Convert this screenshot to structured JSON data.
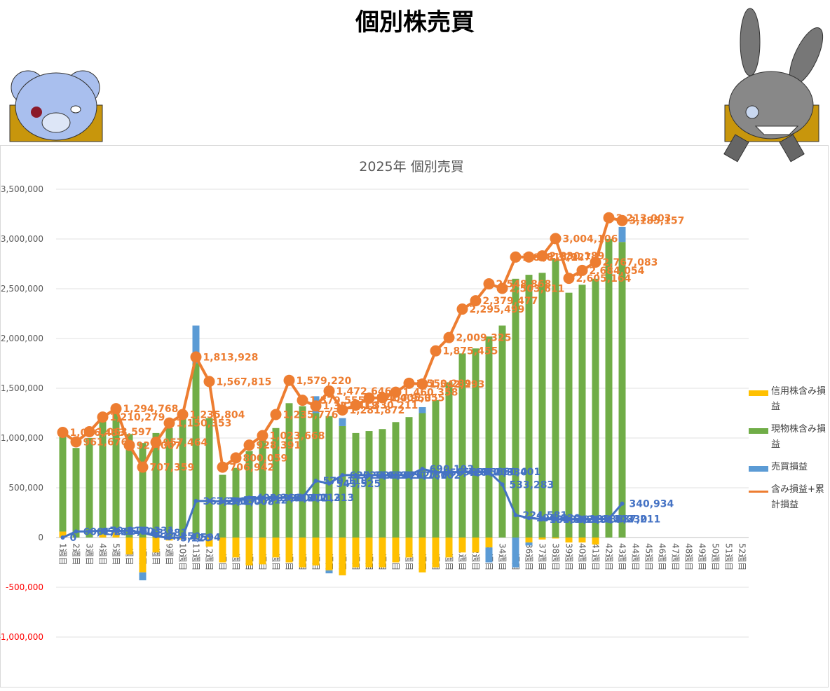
{
  "header": {
    "title": "個別株売買"
  },
  "chart_data": {
    "type": "combo",
    "title": "2025年 個別売買",
    "categories": [
      "1週目",
      "2週目",
      "3週目",
      "4週目",
      "5週目",
      "6週目",
      "7週目",
      "8週目",
      "9週目",
      "10週目",
      "11週目",
      "12週目",
      "13週目",
      "14週目",
      "15週目",
      "16週目",
      "17週目",
      "18週目",
      "19週目",
      "20週目",
      "21週目",
      "22週目",
      "23週目",
      "24週目",
      "25週目",
      "26週目",
      "27週目",
      "28週目",
      "29週目",
      "30週目",
      "31週目",
      "32週目",
      "33週目",
      "34週目",
      "35週目",
      "36週目",
      "37週目",
      "38週目",
      "39週目",
      "40週目",
      "41週目",
      "42週目",
      "43週目",
      "44週目",
      "45週目",
      "46週目",
      "47週目",
      "48週目",
      "49週目",
      "50週目",
      "51週目",
      "52週目"
    ],
    "ylim": [
      -1000000,
      3500000
    ],
    "yticks": [
      {
        "value": -1000000,
        "label": "-1,000,000"
      },
      {
        "value": -500000,
        "label": "-500,000"
      },
      0,
      {
        "value": 500000,
        "label": "500,000"
      },
      {
        "value": 1000000,
        "label": "1,000,000"
      },
      {
        "value": 1500000,
        "label": "1,500,000"
      },
      {
        "value": 2000000,
        "label": "2,000,000"
      },
      {
        "value": 2500000,
        "label": "2,500,000"
      },
      {
        "value": 3000000,
        "label": "3,000,000"
      },
      {
        "value": 3500000,
        "label": "3,500,000"
      }
    ],
    "grid": true,
    "legend": "right",
    "series": [
      {
        "name": "信用株含み損益",
        "type": "bar",
        "color": "#ffc000",
        "values": [
          60000,
          0,
          0,
          30000,
          50000,
          -170000,
          -350000,
          -150000,
          -30000,
          -20000,
          -20000,
          -90000,
          -250000,
          -200000,
          -280000,
          -270000,
          -200000,
          -250000,
          -300000,
          -280000,
          -330000,
          -380000,
          -300000,
          -300000,
          -300000,
          -250000,
          -200000,
          -350000,
          -300000,
          -200000,
          -150000,
          -150000,
          -100000,
          0,
          0,
          -50000,
          -20000,
          -10000,
          -50000,
          -50000,
          -70000,
          0,
          0,
          null,
          null,
          null,
          null,
          null,
          null,
          null,
          null,
          null
        ]
      },
      {
        "name": "現物株含み損益",
        "type": "bar",
        "color": "#70ad47",
        "values": [
          965000,
          900000,
          1000000,
          1140000,
          1230000,
          1040000,
          950000,
          1050000,
          1100000,
          1250000,
          1750000,
          1200000,
          630000,
          700000,
          870000,
          1000000,
          1100000,
          1350000,
          1320000,
          1250000,
          1220000,
          1120000,
          1050000,
          1070000,
          1090000,
          1160000,
          1210000,
          1250000,
          1380000,
          1560000,
          1850000,
          1900000,
          2020000,
          2130000,
          2600000,
          2640000,
          2660000,
          2800000,
          2460000,
          2540000,
          2600000,
          3000000,
          2970000,
          null,
          null,
          null,
          null,
          null,
          null,
          null,
          null,
          null
        ]
      },
      {
        "name": "売買損益",
        "type": "bar",
        "color": "#5b9bd5",
        "values": [
          0,
          0,
          0,
          0,
          0,
          0,
          -80000,
          0,
          0,
          0,
          380000,
          0,
          0,
          0,
          0,
          0,
          0,
          0,
          0,
          170000,
          -30000,
          80000,
          0,
          0,
          0,
          0,
          0,
          60000,
          0,
          0,
          0,
          0,
          -150000,
          0,
          -300000,
          -30000,
          0,
          0,
          0,
          0,
          0,
          0,
          150000,
          null,
          null,
          null,
          null,
          null,
          null,
          null,
          null,
          null
        ]
      },
      {
        "name": "含み損益+累計損益",
        "type": "line",
        "color": "#ed7d31",
        "marker": true,
        "values": [
          1056433,
          961676,
          1063597,
          1210279,
          1294768,
          927007,
          707359,
          957464,
          1150353,
          1235804,
          1813928,
          1567815,
          706942,
          800059,
          928391,
          1023668,
          1235776,
          1579220,
          1379555,
          1322418,
          1472646,
          1281872,
          1330211,
          1400953,
          1405055,
          1460358,
          1550289,
          1542293,
          1875455,
          2009325,
          2295499,
          2379477,
          2548868,
          2503611,
          2818372,
          2818927,
          2830189,
          3004106,
          2605164,
          2684054,
          2767083,
          3213003,
          3185157,
          null,
          null,
          null,
          null,
          null,
          null,
          null,
          null,
          null
        ],
        "value_labels": [
          "1,056,433",
          "961,676",
          "1,063,597",
          "1,210,279",
          "1,294,768",
          "927,007",
          "707,359",
          "957,464",
          "1,150,353",
          "1,235,804",
          "1,813,928",
          "1,567,815",
          "706,942",
          "800,059",
          "928,391",
          "1,023,668",
          "1,235,776",
          "1,579,220",
          "1,379,555",
          "1,322,418",
          "1,472,646",
          "1,281,872",
          "1,330,211",
          "1,400,953",
          "1,405,055",
          "1,460,358",
          "1,550,289",
          "1,542,293",
          "1,875,455",
          "2,009,325",
          "2,295,499",
          "2,379,477",
          "2,548,868",
          "2,503,611",
          "2,818,372",
          "2,818,927",
          "2,830,189",
          "3,004,106",
          "2,605,164",
          "2,684,054",
          "2,767,083",
          "3,213,003",
          "3,185,157",
          null,
          null,
          null,
          null,
          null,
          null,
          null,
          null,
          null
        ]
      },
      {
        "type": "line",
        "color": "#4472c4",
        "marker": false,
        "values": [
          0,
          60452,
          61223,
          70118,
          65004,
          70331,
          48881,
          14250,
          -5120,
          4594,
          367201,
          367530,
          361008,
          375712,
          400366,
          399512,
          398871,
          400213,
          401213,
          570118,
          543525,
          627110,
          627432,
          626905,
          627311,
          627780,
          627102,
          690193,
          656420,
          656812,
          657003,
          656930,
          660401,
          533283,
          224581,
          196630,
          184502,
          184220,
          183914,
          185102,
          186330,
          187211,
          340934,
          null,
          null,
          null,
          null,
          null,
          null,
          null,
          null,
          null
        ],
        "value_labels": [
          "0",
          "60,452",
          "61,223",
          "70,118",
          "65,004",
          "70,331",
          "48,881",
          "14,250",
          "-5,120",
          "4,594",
          "367,201",
          "367,530",
          "361,008",
          "375,712",
          "400,366",
          "399,512",
          "398,871",
          "400,213",
          "401,213",
          "570,118",
          "543,525",
          "627,110",
          "627,432",
          "626,905",
          "627,311",
          "627,780",
          "627,102",
          "690,193",
          "656,420",
          "656,812",
          "657,003",
          "656,930",
          "660,401",
          "533,283",
          "224,581",
          "196,630",
          "184,502",
          "184,220",
          "183,914",
          "185,102",
          "186,330",
          "187,211",
          "340,934",
          null,
          null,
          null,
          null,
          null,
          null,
          null,
          null,
          null
        ]
      }
    ]
  }
}
